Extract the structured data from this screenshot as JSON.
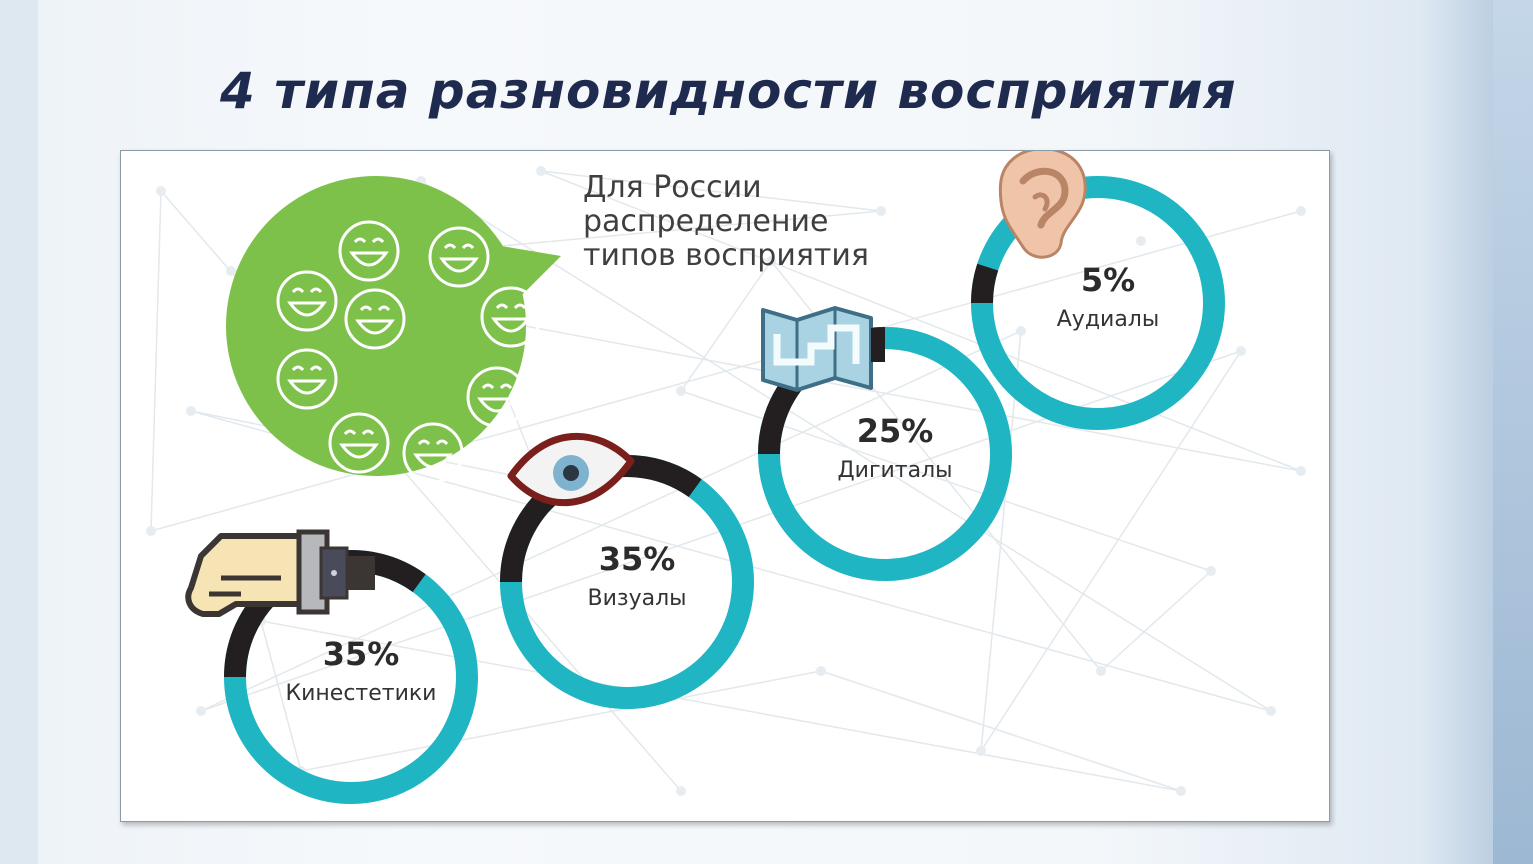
{
  "slide": {
    "title": "4 типа разновидности восприятия"
  },
  "bubble": {
    "caption": "Для России\nраспределение\nтипов восприятия",
    "smiley_count": 10
  },
  "colors": {
    "ring": "#1fb5c3",
    "ring_dark": "#231f20",
    "bubble": "#7dc14b",
    "title": "#1f2a4f"
  },
  "chart_data": {
    "type": "pie",
    "title": "",
    "series": [
      {
        "name": "Кинестетики",
        "label": "35%",
        "value": 35,
        "icon": "hand-watch-icon"
      },
      {
        "name": "Визуалы",
        "label": "35%",
        "value": 35,
        "icon": "eye-icon"
      },
      {
        "name": "Дигиталы",
        "label": "25%",
        "value": 25,
        "icon": "map-icon"
      },
      {
        "name": "Аудиалы",
        "label": "5%",
        "value": 5,
        "icon": "ear-icon"
      }
    ]
  }
}
